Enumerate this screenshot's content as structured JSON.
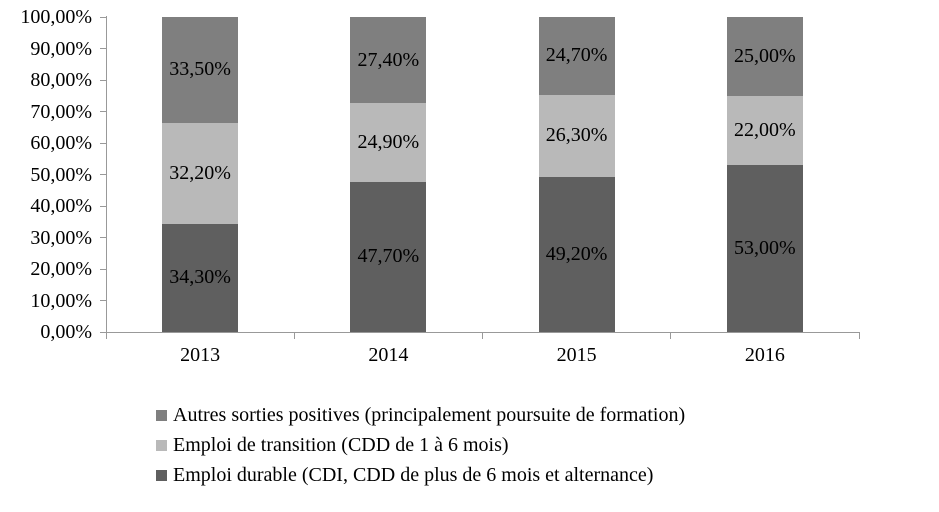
{
  "chart_data": {
    "type": "bar",
    "stacked": true,
    "percent_stacked": true,
    "grid": false,
    "legend_position": "bottom-left",
    "categories": [
      "2013",
      "2014",
      "2015",
      "2016"
    ],
    "series": [
      {
        "name": "Emploi durable (CDI, CDD de plus de 6 mois et alternance)",
        "color": "#5f5f5f",
        "values": [
          34.3,
          47.7,
          49.2,
          53.0
        ],
        "labels": [
          "34,30%",
          "47,70%",
          "49,20%",
          "53,00%"
        ]
      },
      {
        "name": "Emploi de transition (CDD de 1 à 6 mois)",
        "color": "#b9b9b9",
        "values": [
          32.2,
          24.9,
          26.3,
          22.0
        ],
        "labels": [
          "32,20%",
          "24,90%",
          "26,30%",
          "22,00%"
        ]
      },
      {
        "name": "Autres sorties positives (principalement poursuite de formation)",
        "color": "#7f7f7f",
        "values": [
          33.5,
          27.4,
          24.7,
          25.0
        ],
        "labels": [
          "33,50%",
          "27,40%",
          "24,70%",
          "25,00%"
        ]
      }
    ],
    "y_axis": {
      "min": 0,
      "max": 100,
      "step": 10,
      "tick_labels": [
        "0,00%",
        "10,00%",
        "20,00%",
        "30,00%",
        "40,00%",
        "50,00%",
        "60,00%",
        "70,00%",
        "80,00%",
        "90,00%",
        "100,00%"
      ]
    },
    "legend": [
      {
        "label": "Autres sorties positives (principalement poursuite de formation)",
        "color": "#7f7f7f"
      },
      {
        "label": "Emploi de transition (CDD de 1 à 6 mois)",
        "color": "#b9b9b9"
      },
      {
        "label": "Emploi durable (CDI, CDD de plus de 6 mois et alternance)",
        "color": "#5f5f5f"
      }
    ]
  }
}
